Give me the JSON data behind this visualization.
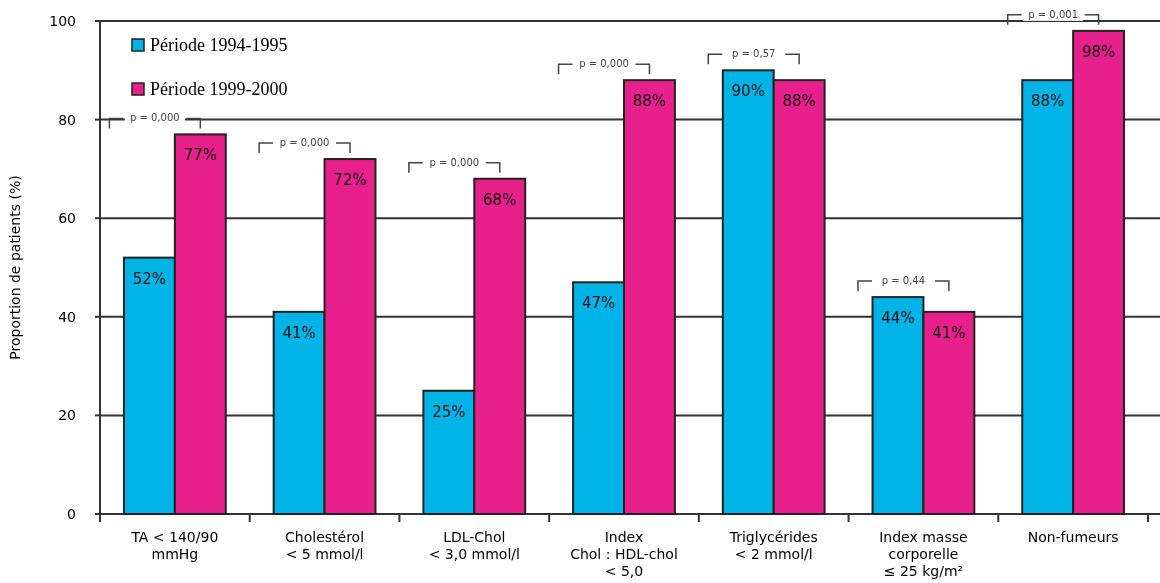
{
  "chart_data": {
    "type": "bar",
    "ylabel": "Proportion de patients (%)",
    "categories": [
      "TA < 140/90\nmmHg",
      "Cholestérol\n< 5 mmol/l",
      "LDL-Chol\n< 3,0 mmol/l",
      "Index\nChol : HDL-chol\n< 5,0",
      "Triglycérides\n< 2 mmol/l",
      "Index masse\ncorporelle\n≤ 25 kg/m²",
      "Non-fumeurs"
    ],
    "series": [
      {
        "name": "Période 1994-1995",
        "color": "#00b3e6",
        "values": [
          52,
          41,
          25,
          47,
          90,
          44,
          88
        ],
        "value_labels": [
          "52%",
          "41%",
          "25%",
          "47%",
          "90%",
          "44%",
          "88%"
        ]
      },
      {
        "name": "Période 1999-2000",
        "color": "#e8208c",
        "values": [
          77,
          72,
          68,
          88,
          88,
          41,
          98
        ],
        "value_labels": [
          "77%",
          "72%",
          "68%",
          "88%",
          "88%",
          "41%",
          "98%"
        ]
      }
    ],
    "ylim": [
      0,
      100
    ],
    "yticks": [
      0,
      20,
      40,
      60,
      80,
      100
    ],
    "grid": "y",
    "legend": "top left",
    "annotations": [
      "p = 0,000",
      "p = 0,000",
      "p = 0,000",
      "p = 0,000",
      "p = 0,57",
      "p = 0,44",
      "p = 0,001"
    ]
  }
}
